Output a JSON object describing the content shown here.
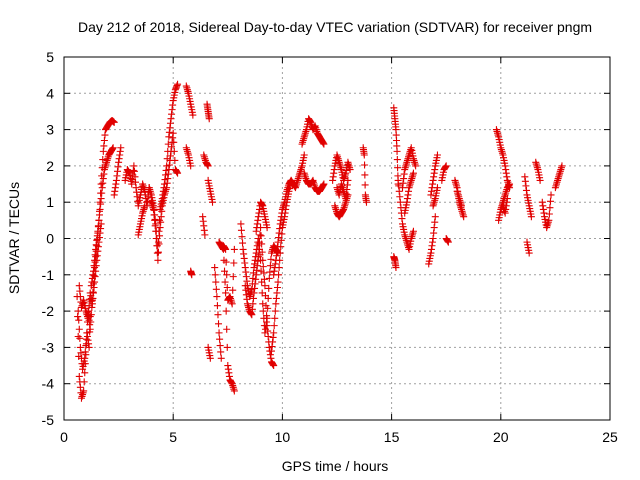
{
  "chart_data": {
    "type": "scatter",
    "title": "Day 212 of 2018, Sidereal Day-to-day VTEC variation (SDTVAR) for receiver pngm",
    "xlabel": "GPS time / hours",
    "ylabel": "SDTVAR / TECUs",
    "xlim": [
      0,
      25
    ],
    "ylim": [
      -5,
      5
    ],
    "xticks": [
      0,
      5,
      10,
      15,
      20,
      25
    ],
    "yticks": [
      -5,
      -4,
      -3,
      -2,
      -1,
      0,
      1,
      2,
      3,
      4,
      5
    ],
    "xtick_labels": [
      "0",
      "5",
      "10",
      "15",
      "20",
      "25"
    ],
    "ytick_labels": [
      "-5",
      "-4",
      "-3",
      "-2",
      "-1",
      "0",
      "1",
      "2",
      "3",
      "4",
      "5"
    ],
    "grid": true,
    "marker": "plus",
    "color": "#e00000",
    "segments": [
      {
        "x": [
          0.6,
          0.7,
          0.8,
          0.9,
          1.0,
          1.1,
          1.2,
          1.3,
          1.4,
          1.5,
          1.6,
          1.7,
          1.8,
          1.9,
          2.0,
          2.1,
          2.2,
          2.3
        ],
        "y": [
          -1.6,
          -3.8,
          -4.4,
          -4.2,
          -3.2,
          -2.0,
          -2.5,
          -1.7,
          -0.8,
          -0.2,
          0.5,
          1.5,
          2.4,
          3.0,
          3.1,
          3.2,
          3.25,
          3.2
        ]
      },
      {
        "x": [
          0.65,
          0.75,
          0.85,
          0.95,
          1.05,
          1.15,
          1.25,
          1.35,
          1.45,
          1.55,
          1.65,
          1.75,
          1.85,
          1.95,
          2.05,
          2.15,
          2.25
        ],
        "y": [
          -2.0,
          -3.0,
          -3.6,
          -3.3,
          -2.6,
          -3.0,
          -1.3,
          -0.9,
          -0.3,
          0.2,
          0.8,
          1.4,
          1.9,
          2.1,
          2.3,
          2.4,
          2.5
        ]
      },
      {
        "x": [
          0.7,
          0.8,
          0.9,
          1.0,
          1.1,
          1.2,
          1.3,
          1.4,
          1.5,
          1.6,
          1.7
        ],
        "y": [
          -1.3,
          -1.9,
          -1.7,
          -2.0,
          -2.2,
          -1.5,
          -1.8,
          -1.2,
          -0.6,
          -0.1,
          0.4
        ]
      },
      {
        "x": [
          2.3,
          2.4,
          2.5,
          2.6
        ],
        "y": [
          1.2,
          1.6,
          2.1,
          2.5
        ]
      },
      {
        "x": [
          2.8,
          2.9,
          3.0,
          3.1,
          3.2,
          3.3,
          3.4,
          3.5,
          3.6,
          3.7,
          3.8,
          3.9
        ],
        "y": [
          1.6,
          1.9,
          1.8,
          1.5,
          2.0,
          1.4,
          0.9,
          1.2,
          1.5,
          1.3,
          0.9,
          1.4
        ]
      },
      {
        "x": [
          3.9,
          4.0,
          4.1,
          4.2,
          4.3,
          4.4,
          4.5,
          4.6,
          4.7,
          4.8,
          4.9,
          5.0,
          5.1,
          5.2
        ],
        "y": [
          1.4,
          1.2,
          0.9,
          0.4,
          -0.4,
          0.8,
          1.1,
          1.5,
          2.0,
          2.8,
          3.3,
          3.8,
          4.1,
          4.25
        ]
      },
      {
        "x": [
          4.0,
          4.1,
          4.2,
          4.3,
          4.4,
          4.5,
          4.6,
          4.7,
          4.8,
          4.9,
          5.0,
          5.1,
          5.2
        ],
        "y": [
          1.0,
          0.8,
          0.2,
          -0.6,
          0.3,
          0.9,
          1.2,
          1.4,
          1.9,
          2.4,
          2.9,
          1.9,
          1.8
        ]
      },
      {
        "x": [
          3.4,
          3.5,
          3.6,
          3.7
        ],
        "y": [
          0.1,
          0.4,
          0.7,
          0.9
        ]
      },
      {
        "x": [
          5.6,
          5.7,
          5.8,
          5.9
        ],
        "y": [
          4.2,
          4.0,
          3.7,
          3.4
        ]
      },
      {
        "x": [
          5.6,
          5.7,
          5.8
        ],
        "y": [
          2.5,
          2.3,
          2.0
        ]
      },
      {
        "x": [
          5.8,
          5.85
        ],
        "y": [
          -0.9,
          -1.0
        ]
      },
      {
        "x": [
          6.35,
          6.45
        ],
        "y": [
          0.6,
          0.1
        ]
      },
      {
        "x": [
          6.4,
          6.5,
          6.6
        ],
        "y": [
          2.3,
          2.1,
          2.0
        ]
      },
      {
        "x": [
          6.55,
          6.6,
          6.65
        ],
        "y": [
          3.7,
          3.5,
          3.3
        ]
      },
      {
        "x": [
          6.6,
          6.7,
          6.8
        ],
        "y": [
          1.6,
          1.3,
          1.0
        ]
      },
      {
        "x": [
          6.6,
          6.7
        ],
        "y": [
          -3.0,
          -3.3
        ]
      },
      {
        "x": [
          6.9,
          7.0,
          7.1,
          7.2
        ],
        "y": [
          -0.8,
          -1.6,
          -2.6,
          -3.3
        ]
      },
      {
        "x": [
          7.1,
          7.2,
          7.3,
          7.4,
          7.5,
          7.6,
          7.7,
          7.8
        ],
        "y": [
          -0.1,
          -0.2,
          -0.3,
          -1.5,
          -3.5,
          -3.9,
          -4.0,
          -4.2
        ]
      },
      {
        "x": [
          7.3,
          7.4,
          7.5,
          7.6,
          7.7,
          7.8
        ],
        "y": [
          -0.2,
          -0.3,
          -1.7,
          -1.6,
          -1.8,
          -0.3
        ]
      },
      {
        "x": [
          8.1,
          8.2,
          8.3,
          8.4,
          8.5,
          8.6,
          8.7,
          8.8,
          8.9,
          9.0,
          9.1,
          9.2,
          9.3,
          9.4,
          9.5,
          9.6,
          9.7,
          9.8
        ],
        "y": [
          0.4,
          -0.3,
          -0.8,
          -1.3,
          -1.6,
          -1.4,
          -0.8,
          -0.4,
          0.0,
          -0.6,
          -1.8,
          -2.6,
          -2.2,
          -1.1,
          -0.4,
          -0.2,
          -0.3,
          -0.4
        ]
      },
      {
        "x": [
          8.3,
          8.4,
          8.5,
          8.6,
          8.7,
          8.8,
          8.9,
          9.0,
          9.1,
          9.2,
          9.3,
          9.4,
          9.5,
          9.6
        ],
        "y": [
          -1.3,
          -1.8,
          -2.0,
          -2.1,
          -1.5,
          -1.0,
          -0.5,
          0.3,
          -0.6,
          -1.3,
          -2.4,
          -3.0,
          -3.4,
          -3.5
        ]
      },
      {
        "x": [
          8.8,
          8.9,
          9.0,
          9.1,
          9.2,
          9.3
        ],
        "y": [
          0.2,
          0.6,
          1.0,
          0.9,
          0.6,
          0.3
        ]
      },
      {
        "x": [
          9.5,
          9.6,
          9.7,
          9.8,
          9.9,
          10.0,
          10.1,
          10.2,
          10.3,
          10.4,
          10.5,
          10.6,
          10.7,
          10.8,
          10.9,
          11.0
        ],
        "y": [
          -3.1,
          -2.6,
          -1.8,
          -1.2,
          -0.4,
          0.3,
          0.6,
          1.0,
          1.3,
          1.6,
          1.5,
          1.4,
          1.6,
          1.8,
          2.0,
          2.3
        ]
      },
      {
        "x": [
          9.6,
          9.7,
          9.8,
          9.9,
          10.0,
          10.1,
          10.2,
          10.3,
          10.4
        ],
        "y": [
          -1.0,
          -0.6,
          -0.1,
          0.4,
          0.8,
          1.0,
          1.3,
          1.5,
          1.6
        ]
      },
      {
        "x": [
          10.9,
          11.0,
          11.1,
          11.2,
          11.3,
          11.4,
          11.5,
          11.6,
          11.7,
          11.8,
          11.9
        ],
        "y": [
          2.6,
          2.8,
          3.0,
          3.3,
          3.2,
          3.0,
          3.1,
          2.9,
          2.8,
          2.7,
          2.6
        ]
      },
      {
        "x": [
          11.0,
          11.1,
          11.2,
          11.3,
          11.4,
          11.5,
          11.6,
          11.7,
          11.8,
          11.9
        ],
        "y": [
          1.8,
          1.6,
          1.5,
          1.5,
          1.6,
          1.4,
          1.3,
          1.3,
          1.4,
          1.5
        ]
      },
      {
        "x": [
          12.3,
          12.4,
          12.5,
          12.6,
          12.7,
          12.8,
          12.9,
          13.0,
          13.1
        ],
        "y": [
          1.6,
          2.0,
          2.3,
          2.1,
          1.9,
          1.6,
          1.8,
          2.1,
          1.9
        ]
      },
      {
        "x": [
          12.4,
          12.5,
          12.6,
          12.7,
          12.8,
          12.9,
          13.0
        ],
        "y": [
          0.9,
          0.7,
          0.6,
          0.7,
          0.8,
          1.0,
          1.2
        ]
      },
      {
        "x": [
          12.5,
          12.6,
          12.7,
          12.8,
          12.9,
          13.0
        ],
        "y": [
          1.4,
          1.2,
          1.5,
          1.3,
          1.1,
          1.6
        ]
      },
      {
        "x": [
          13.7,
          13.75,
          13.8,
          13.85
        ],
        "y": [
          2.5,
          2.3,
          1.2,
          1.0
        ]
      },
      {
        "x": [
          15.1,
          15.15,
          15.2,
          15.25,
          15.3
        ],
        "y": [
          3.6,
          3.3,
          3.0,
          2.4,
          1.5
        ]
      },
      {
        "x": [
          15.1,
          15.15,
          15.2
        ],
        "y": [
          -0.5,
          -0.6,
          -0.8
        ]
      },
      {
        "x": [
          15.3,
          15.4,
          15.5,
          15.6,
          15.7,
          15.8,
          15.9,
          16.0
        ],
        "y": [
          1.6,
          1.0,
          0.4,
          0.1,
          -0.1,
          -0.3,
          0.0,
          0.2
        ]
      },
      {
        "x": [
          15.5,
          15.6,
          15.7,
          15.8,
          15.9,
          16.0,
          16.1
        ],
        "y": [
          1.4,
          1.9,
          2.1,
          2.3,
          2.5,
          2.2,
          2.0
        ]
      },
      {
        "x": [
          15.6,
          15.7,
          15.8,
          15.9,
          16.0
        ],
        "y": [
          0.7,
          1.0,
          1.4,
          1.6,
          1.8
        ]
      },
      {
        "x": [
          16.7,
          16.8,
          16.9,
          17.0
        ],
        "y": [
          -0.7,
          -0.4,
          0.0,
          0.6
        ]
      },
      {
        "x": [
          16.8,
          16.9,
          17.0,
          17.1
        ],
        "y": [
          1.2,
          1.6,
          2.0,
          2.3
        ]
      },
      {
        "x": [
          16.9,
          17.0,
          17.1
        ],
        "y": [
          0.9,
          1.1,
          1.4
        ]
      },
      {
        "x": [
          17.3,
          17.4,
          17.5
        ],
        "y": [
          1.6,
          1.9,
          2.0
        ]
      },
      {
        "x": [
          17.5,
          17.6
        ],
        "y": [
          0.0,
          -0.1
        ]
      },
      {
        "x": [
          17.9,
          18.0,
          18.1,
          18.2,
          18.3
        ],
        "y": [
          1.6,
          1.4,
          1.0,
          0.8,
          0.6
        ]
      },
      {
        "x": [
          18.0,
          18.1,
          18.2
        ],
        "y": [
          1.3,
          1.1,
          0.9
        ]
      },
      {
        "x": [
          19.8,
          19.9,
          20.0,
          20.1,
          20.2,
          20.3,
          20.4
        ],
        "y": [
          3.0,
          2.8,
          2.5,
          2.3,
          2.0,
          1.6,
          1.4
        ]
      },
      {
        "x": [
          19.9,
          20.0,
          20.1,
          20.2,
          20.3,
          20.4
        ],
        "y": [
          0.5,
          0.8,
          1.0,
          1.2,
          1.4,
          1.5
        ]
      },
      {
        "x": [
          20.1,
          20.2,
          20.3
        ],
        "y": [
          0.9,
          0.7,
          1.1
        ]
      },
      {
        "x": [
          21.1,
          21.2,
          21.3,
          21.4
        ],
        "y": [
          1.7,
          1.2,
          0.9,
          0.6
        ]
      },
      {
        "x": [
          21.2,
          21.3
        ],
        "y": [
          -0.1,
          -0.4
        ]
      },
      {
        "x": [
          21.6,
          21.7,
          21.8
        ],
        "y": [
          2.1,
          1.9,
          1.6
        ]
      },
      {
        "x": [
          21.9,
          22.0,
          22.1,
          22.2,
          22.3
        ],
        "y": [
          1.0,
          0.6,
          0.3,
          0.5,
          1.2
        ]
      },
      {
        "x": [
          22.5,
          22.6,
          22.7,
          22.8
        ],
        "y": [
          1.4,
          1.6,
          1.8,
          2.0
        ]
      }
    ]
  }
}
